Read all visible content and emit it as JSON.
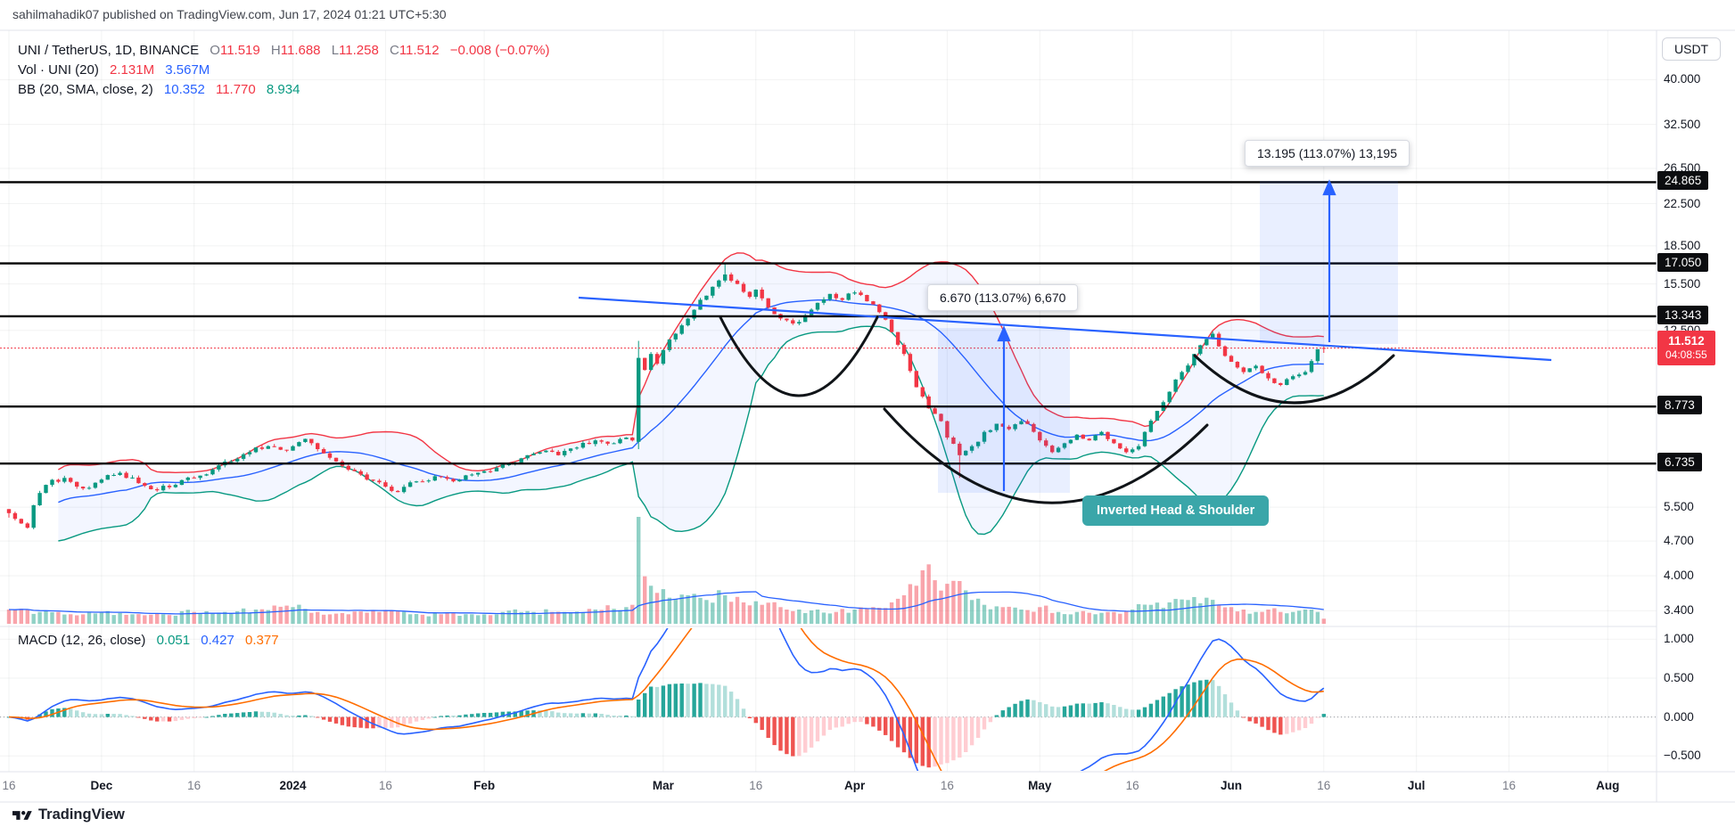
{
  "header": {
    "publish_line": "sahilmahadik07 published on TradingView.com, Jun 17, 2024 01:21 UTC+5:30"
  },
  "legend": {
    "symbol_line": {
      "title": "UNI / TetherUS, 1D, BINANCE",
      "o_label": "O",
      "o": "11.519",
      "h_label": "H",
      "h": "11.688",
      "l_label": "L",
      "l": "11.258",
      "c_label": "C",
      "c": "11.512",
      "change": "−0.008 (−0.07%)"
    },
    "volume_line": {
      "title": "Vol · UNI (20)",
      "vol": "2.131M",
      "vol_ma": "3.567M"
    },
    "bb_line": {
      "title": "BB (20, SMA, close, 2)",
      "basis": "10.352",
      "upper": "11.770",
      "lower": "8.934"
    },
    "macd_line": {
      "title": "MACD (12, 26, close)",
      "hist": "0.051",
      "macd": "0.427",
      "signal": "0.377"
    }
  },
  "price_scale": {
    "currency": "USDT",
    "ticks": [
      "40.000",
      "32.500",
      "26.500",
      "22.500",
      "18.500",
      "15.500",
      "12.500",
      "5.500",
      "4.700",
      "4.000",
      "3.400"
    ],
    "macd_ticks": [
      {
        "v": 1.0,
        "t": "1.000"
      },
      {
        "v": 0.5,
        "t": "0.500"
      },
      {
        "v": 0.0,
        "t": "0.000"
      },
      {
        "v": -0.5,
        "t": "−0.500"
      }
    ],
    "level_badges": [
      "24.865",
      "17.050",
      "13.343",
      "8.773",
      "6.735"
    ],
    "last_price_badge": {
      "price": "11.512",
      "countdown": "04:08:55"
    }
  },
  "time_axis": [
    {
      "d": 0,
      "t": "16",
      "m": 0
    },
    {
      "d": 15,
      "t": "Dec",
      "m": 1
    },
    {
      "d": 30,
      "t": "16",
      "m": 0
    },
    {
      "d": 46,
      "t": "2024",
      "m": 1
    },
    {
      "d": 61,
      "t": "16",
      "m": 0
    },
    {
      "d": 77,
      "t": "Feb",
      "m": 1
    },
    {
      "d": 106,
      "t": "Mar",
      "m": 1
    },
    {
      "d": 121,
      "t": "16",
      "m": 0
    },
    {
      "d": 137,
      "t": "Apr",
      "m": 1
    },
    {
      "d": 152,
      "t": "16",
      "m": 0
    },
    {
      "d": 167,
      "t": "May",
      "m": 1
    },
    {
      "d": 182,
      "t": "16",
      "m": 0
    },
    {
      "d": 198,
      "t": "Jun",
      "m": 1
    },
    {
      "d": 213,
      "t": "16",
      "m": 0
    },
    {
      "d": 228,
      "t": "Jul",
      "m": 1
    },
    {
      "d": 243,
      "t": "16",
      "m": 0
    },
    {
      "d": 259,
      "t": "Aug",
      "m": 1
    }
  ],
  "annotations": {
    "pattern_label": "Inverted Head & Shoulder",
    "measure_a": {
      "label": "6.670 (113.07%) 6,670"
    },
    "measure_b": {
      "label": "13.195 (113.07%) 13,195"
    },
    "trendline_note": "descending blue neckline from mid-Feb highs through June breakout",
    "arcs_note": "three black arcs marking left shoulder, head and right shoulder"
  },
  "chart_data": {
    "type": "candlestick+volume+macd",
    "symbol": "UNI / TetherUS",
    "interval": "1D",
    "exchange": "BINANCE",
    "price_axis": {
      "scale": "log",
      "visible_range": [
        3.4,
        40.0
      ]
    },
    "time_range": "Nov 16 2023 – Aug 2024 (daily candles end Jun 17 2024)",
    "last_candle": {
      "o": 11.519,
      "h": 11.688,
      "l": 11.258,
      "c": 11.512
    },
    "levels": [
      24.865,
      17.05,
      13.343,
      8.773,
      6.735
    ],
    "indicators": {
      "bollinger": {
        "period": 20,
        "source": "close",
        "mult": 2
      },
      "macd": {
        "fast": 12,
        "slow": 26,
        "signal": 9
      },
      "volume_ma": 20
    },
    "price_anchors": [
      [
        0,
        5.35
      ],
      [
        2,
        5.1
      ],
      [
        3,
        5.0
      ],
      [
        4,
        5.55
      ],
      [
        6,
        6.1
      ],
      [
        9,
        6.3
      ],
      [
        12,
        6.0
      ],
      [
        15,
        6.25
      ],
      [
        18,
        6.45
      ],
      [
        21,
        6.15
      ],
      [
        24,
        5.95
      ],
      [
        27,
        6.1
      ],
      [
        30,
        6.3
      ],
      [
        33,
        6.55
      ],
      [
        36,
        6.8
      ],
      [
        39,
        7.1
      ],
      [
        42,
        7.3
      ],
      [
        45,
        7.15
      ],
      [
        46,
        7.3
      ],
      [
        48,
        7.55
      ],
      [
        50,
        7.2
      ],
      [
        53,
        6.8
      ],
      [
        56,
        6.5
      ],
      [
        58,
        6.25
      ],
      [
        61,
        6.05
      ],
      [
        63,
        5.9
      ],
      [
        66,
        6.2
      ],
      [
        69,
        6.35
      ],
      [
        72,
        6.2
      ],
      [
        75,
        6.4
      ],
      [
        77,
        6.5
      ],
      [
        80,
        6.7
      ],
      [
        83,
        6.9
      ],
      [
        86,
        7.1
      ],
      [
        89,
        7.0
      ],
      [
        92,
        7.25
      ],
      [
        95,
        7.5
      ],
      [
        98,
        7.4
      ],
      [
        100,
        7.6
      ],
      [
        101,
        7.5
      ],
      [
        102,
        11.0
      ],
      [
        103,
        10.4
      ],
      [
        104,
        11.2
      ],
      [
        105,
        10.7
      ],
      [
        106,
        11.4
      ],
      [
        108,
        12.3
      ],
      [
        110,
        13.2
      ],
      [
        112,
        14.4
      ],
      [
        114,
        15.3
      ],
      [
        116,
        16.2
      ],
      [
        118,
        15.5
      ],
      [
        120,
        14.6
      ],
      [
        121,
        15.1
      ],
      [
        123,
        13.9
      ],
      [
        125,
        13.2
      ],
      [
        127,
        12.9
      ],
      [
        129,
        13.4
      ],
      [
        131,
        14.2
      ],
      [
        133,
        14.8
      ],
      [
        135,
        14.4
      ],
      [
        137,
        14.9
      ],
      [
        139,
        14.3
      ],
      [
        141,
        13.6
      ],
      [
        143,
        12.4
      ],
      [
        145,
        11.2
      ],
      [
        147,
        9.6
      ],
      [
        149,
        8.7
      ],
      [
        151,
        8.2
      ],
      [
        152,
        7.6
      ],
      [
        154,
        7.0
      ],
      [
        156,
        7.3
      ],
      [
        158,
        7.8
      ],
      [
        160,
        8.1
      ],
      [
        162,
        7.9
      ],
      [
        164,
        8.2
      ],
      [
        166,
        7.8
      ],
      [
        167,
        7.5
      ],
      [
        169,
        7.1
      ],
      [
        171,
        7.4
      ],
      [
        173,
        7.7
      ],
      [
        175,
        7.5
      ],
      [
        177,
        7.8
      ],
      [
        179,
        7.4
      ],
      [
        181,
        7.1
      ],
      [
        183,
        7.3
      ],
      [
        184,
        7.8
      ],
      [
        186,
        8.6
      ],
      [
        188,
        9.4
      ],
      [
        190,
        10.3
      ],
      [
        192,
        11.2
      ],
      [
        194,
        12.0
      ],
      [
        195,
        12.3
      ],
      [
        196,
        11.6
      ],
      [
        198,
        10.8
      ],
      [
        200,
        10.3
      ],
      [
        202,
        10.6
      ],
      [
        204,
        10.0
      ],
      [
        206,
        9.7
      ],
      [
        208,
        10.1
      ],
      [
        210,
        10.3
      ],
      [
        212,
        11.45
      ],
      [
        213,
        11.512
      ]
    ],
    "volume_anchors": [
      [
        0,
        6
      ],
      [
        5,
        5
      ],
      [
        10,
        4
      ],
      [
        15,
        5
      ],
      [
        20,
        4
      ],
      [
        25,
        4
      ],
      [
        30,
        5
      ],
      [
        35,
        5
      ],
      [
        40,
        6
      ],
      [
        46,
        7
      ],
      [
        50,
        5
      ],
      [
        55,
        4
      ],
      [
        60,
        5
      ],
      [
        65,
        4
      ],
      [
        70,
        4
      ],
      [
        75,
        4
      ],
      [
        80,
        5
      ],
      [
        85,
        5
      ],
      [
        90,
        5
      ],
      [
        95,
        6
      ],
      [
        100,
        7
      ],
      [
        101,
        8
      ],
      [
        102,
        45
      ],
      [
        103,
        20
      ],
      [
        104,
        16
      ],
      [
        105,
        13
      ],
      [
        107,
        11
      ],
      [
        110,
        12
      ],
      [
        113,
        10
      ],
      [
        116,
        12
      ],
      [
        119,
        9
      ],
      [
        122,
        8
      ],
      [
        125,
        7
      ],
      [
        128,
        6
      ],
      [
        131,
        6
      ],
      [
        134,
        5
      ],
      [
        137,
        6
      ],
      [
        140,
        7
      ],
      [
        143,
        9
      ],
      [
        145,
        12
      ],
      [
        147,
        16
      ],
      [
        149,
        25
      ],
      [
        151,
        14
      ],
      [
        154,
        18
      ],
      [
        156,
        10
      ],
      [
        158,
        8
      ],
      [
        161,
        7
      ],
      [
        164,
        6
      ],
      [
        167,
        7
      ],
      [
        170,
        5
      ],
      [
        173,
        5
      ],
      [
        176,
        4
      ],
      [
        179,
        5
      ],
      [
        182,
        6
      ],
      [
        185,
        8
      ],
      [
        188,
        9
      ],
      [
        191,
        10
      ],
      [
        194,
        11
      ],
      [
        196,
        8
      ],
      [
        198,
        7
      ],
      [
        200,
        6
      ],
      [
        202,
        5
      ],
      [
        204,
        6
      ],
      [
        206,
        5
      ],
      [
        208,
        5
      ],
      [
        210,
        6
      ],
      [
        212,
        5
      ],
      [
        213,
        2.131
      ]
    ],
    "candle_overrides": [
      {
        "day": 0,
        "o": 5.45
      },
      {
        "day": 102,
        "o": 7.45,
        "h": 11.9,
        "l": 7.2
      },
      {
        "day": 116,
        "h": 17.05
      },
      {
        "day": 154,
        "l": 6.3
      },
      {
        "day": 213,
        "o": 11.519,
        "h": 11.688,
        "l": 11.258,
        "c": 11.512
      }
    ]
  },
  "colors": {
    "up": "#089981",
    "down": "#F23645",
    "vol_up": "rgba(8,153,129,0.45)",
    "vol_down": "rgba(242,54,69,0.45)",
    "bb_basis": "#2962FF",
    "bb_upper": "#F23645",
    "bb_lower": "#089981",
    "bb_fill": "rgba(41,98,255,0.055)",
    "vol_ma": "#2962FF",
    "macd": "#2962FF",
    "macd_signal": "#FF6D00",
    "hist_pos": "#26A69A",
    "hist_pos_weak": "#B2DFDB",
    "hist_neg": "#EF5350",
    "hist_neg_weak": "#FFCDD2",
    "trend": "#2962FF",
    "arc": "#101418",
    "level": "#000000",
    "measure_fill": "rgba(41,98,255,0.10)",
    "grid": "rgba(42,46,57,0.06)",
    "pattern_label_bg": "#3AA6A9",
    "last_price": "#F23645"
  },
  "footer": {
    "logo_text": "TradingView"
  }
}
